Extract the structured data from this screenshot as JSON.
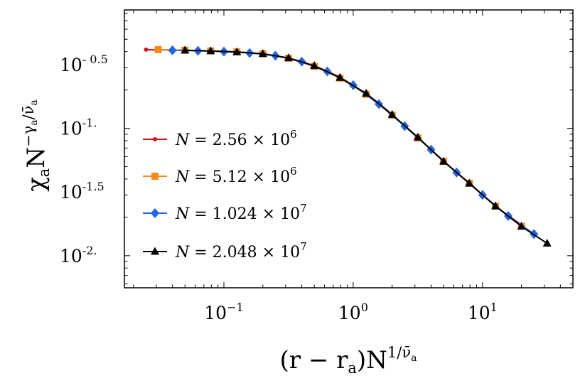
{
  "chart_data": {
    "type": "line",
    "xscale": "log",
    "yscale": "log",
    "xlim": [
      0.017,
      50
    ],
    "ylim": [
      0.0056,
      0.85
    ],
    "xticks": [
      {
        "value": 0.1,
        "base": "10",
        "exp": "−1"
      },
      {
        "value": 1,
        "base": "10",
        "exp": "0"
      },
      {
        "value": 10,
        "base": "10",
        "exp": "1"
      }
    ],
    "yticks": [
      {
        "value": 0.3162,
        "base": "10",
        "exp": "- 0.5"
      },
      {
        "value": 0.1,
        "base": "10",
        "exp": "-1."
      },
      {
        "value": 0.03162,
        "base": "10",
        "exp": "-1.5"
      },
      {
        "value": 0.01,
        "base": "10",
        "exp": "-2."
      }
    ],
    "xlabel": {
      "main": "(r − r",
      "sub": "a",
      "after": ")N",
      "sup": "1/ν̄",
      "supsub": "a"
    },
    "ylabel": {
      "main": "χ",
      "sub": "a",
      "after": "N",
      "sup": "−γ",
      "supsub": "a",
      "sup2": "/ν̄",
      "supsub2": "a"
    },
    "legend_position": "center-left",
    "series": [
      {
        "name": {
          "lhs": "N",
          "rhs": " = 2.56 × 10",
          "exp": "6"
        },
        "color": "#c9171e",
        "marker": "dot",
        "x": [
          0.025,
          0.031,
          0.04,
          0.05,
          0.063,
          0.08,
          0.1,
          0.126,
          0.16,
          0.2,
          0.25,
          0.32,
          0.4,
          0.5,
          0.63,
          0.8,
          1.0,
          1.26,
          1.6,
          2.0,
          2.5,
          3.2,
          4.0,
          5.0,
          6.3,
          8.0,
          10.0,
          12.6,
          16.0,
          20.0
        ],
        "y": [
          0.415,
          0.413,
          0.412,
          0.41,
          0.408,
          0.405,
          0.402,
          0.398,
          0.392,
          0.384,
          0.372,
          0.355,
          0.334,
          0.309,
          0.281,
          0.25,
          0.218,
          0.186,
          0.156,
          0.128,
          0.104,
          0.084,
          0.068,
          0.055,
          0.045,
          0.037,
          0.03,
          0.0245,
          0.0205,
          0.0175
        ]
      },
      {
        "name": {
          "lhs": "N",
          "rhs": " = 5.12 × 10",
          "exp": "6"
        },
        "color": "#f28c1c",
        "marker": "square",
        "x": [
          0.031,
          0.05,
          0.079,
          0.126,
          0.2,
          0.316,
          0.5,
          0.79,
          1.26,
          2.0,
          3.16,
          5.0,
          7.9,
          12.6,
          20.0
        ],
        "y": [
          0.415,
          0.41,
          0.405,
          0.398,
          0.384,
          0.355,
          0.306,
          0.248,
          0.185,
          0.127,
          0.084,
          0.055,
          0.037,
          0.0245,
          0.017
        ]
      },
      {
        "name": {
          "lhs": "N",
          "rhs": " = 1.024 × 10",
          "exp": "7"
        },
        "color": "#2366df",
        "marker": "diamond",
        "x": [
          0.04,
          0.063,
          0.1,
          0.158,
          0.25,
          0.4,
          0.63,
          1.0,
          1.58,
          2.5,
          4.0,
          6.3,
          10.0,
          15.8,
          25.0
        ],
        "y": [
          0.41,
          0.406,
          0.4,
          0.39,
          0.372,
          0.334,
          0.28,
          0.218,
          0.155,
          0.104,
          0.068,
          0.045,
          0.03,
          0.0205,
          0.0148
        ]
      },
      {
        "name": {
          "lhs": "N",
          "rhs": " = 2.048 × 10",
          "exp": "7"
        },
        "color": "#000000",
        "marker": "triangle",
        "x": [
          0.05,
          0.079,
          0.126,
          0.2,
          0.316,
          0.5,
          0.79,
          1.26,
          2.0,
          3.16,
          5.0,
          7.9,
          12.6,
          20.0,
          31.6
        ],
        "y": [
          0.41,
          0.405,
          0.398,
          0.385,
          0.357,
          0.31,
          0.25,
          0.188,
          0.128,
          0.085,
          0.055,
          0.037,
          0.0245,
          0.017,
          0.0125
        ]
      }
    ]
  }
}
